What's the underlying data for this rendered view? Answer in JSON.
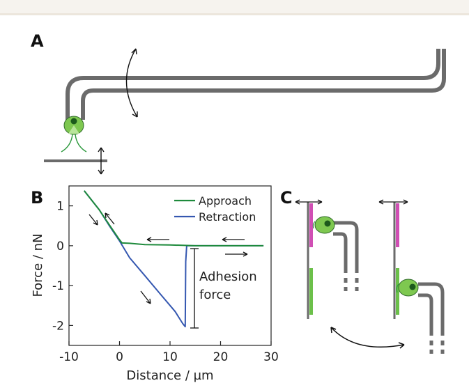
{
  "panels": {
    "a": "A",
    "b": "B",
    "c": "C"
  },
  "colors": {
    "pipette": "#6b6b6b",
    "cell": "#7ec850",
    "cell_dark": "#1c5a1c",
    "approach": "#1e8a3c",
    "retraction": "#3457b0",
    "magenta": "#d04fb4",
    "green_surface": "#6cc04a"
  },
  "chart_data": {
    "type": "line",
    "xlabel": "Distance / µm",
    "ylabel": "Force / nN",
    "xlim": [
      -10,
      30
    ],
    "ylim": [
      -2.5,
      1.5
    ],
    "xticks": [
      "-10",
      "0",
      "10",
      "20",
      "30"
    ],
    "yticks": [
      "1",
      "0",
      "-1",
      "-2"
    ],
    "legend": "top-right",
    "series": [
      {
        "name": "Approach",
        "x": [
          -7,
          -4,
          -2,
          0,
          0.5,
          2,
          5,
          10,
          15,
          20,
          25,
          28.5
        ],
        "y": [
          1.38,
          0.9,
          0.52,
          0.15,
          0.07,
          0.06,
          0.03,
          0.02,
          0.0,
          0.0,
          0.0,
          0.0
        ]
      },
      {
        "name": "Retraction",
        "x": [
          -7,
          -4,
          -2,
          0,
          2,
          5,
          8,
          11,
          12.5,
          13.0,
          13.1,
          13.3,
          15,
          20,
          25,
          28.5
        ],
        "y": [
          1.38,
          0.9,
          0.5,
          0.12,
          -0.3,
          -0.75,
          -1.2,
          -1.65,
          -1.95,
          -2.03,
          -0.4,
          0.0,
          0.0,
          0.0,
          0.0,
          0.0
        ]
      }
    ],
    "annotations": [
      "Adhesion",
      "force"
    ]
  }
}
